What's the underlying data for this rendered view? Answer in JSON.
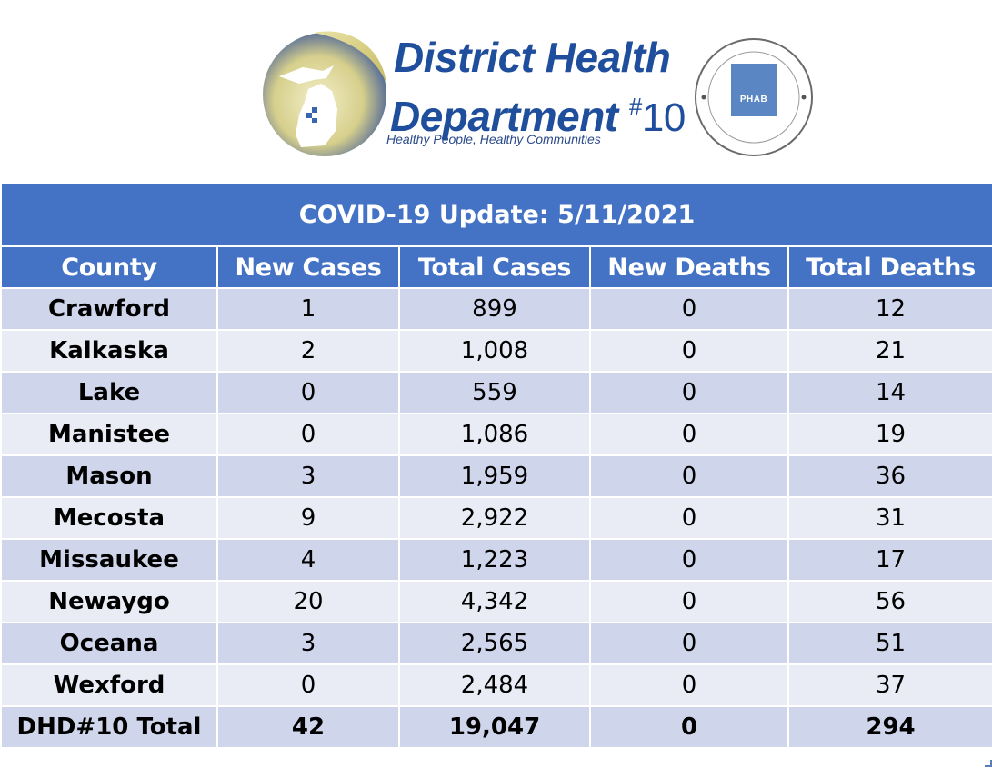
{
  "logo": {
    "line1": "District Health",
    "line2": "Department",
    "number_hash": "#",
    "number": "10",
    "tagline": "Healthy People, Healthy Communities",
    "seal_label": "PHAB",
    "brand_color": "#1f4e9c",
    "icons": [
      "michigan-map-icon",
      "accreditation-seal-icon"
    ]
  },
  "table": {
    "title": "COVID-19 Update: 5/11/2021",
    "header_color": "#4472c4",
    "columns": [
      "County",
      "New Cases",
      "Total Cases",
      "New Deaths",
      "Total Deaths"
    ],
    "rows": [
      [
        "Crawford",
        "1",
        "899",
        "0",
        "12"
      ],
      [
        "Kalkaska",
        "2",
        "1,008",
        "0",
        "21"
      ],
      [
        "Lake",
        "0",
        "559",
        "0",
        "14"
      ],
      [
        "Manistee",
        "0",
        "1,086",
        "0",
        "19"
      ],
      [
        "Mason",
        "3",
        "1,959",
        "0",
        "36"
      ],
      [
        "Mecosta",
        "9",
        "2,922",
        "0",
        "31"
      ],
      [
        "Missaukee",
        "4",
        "1,223",
        "0",
        "17"
      ],
      [
        "Newaygo",
        "20",
        "4,342",
        "0",
        "56"
      ],
      [
        "Oceana",
        "3",
        "2,565",
        "0",
        "51"
      ],
      [
        "Wexford",
        "0",
        "2,484",
        "0",
        "37"
      ]
    ],
    "total": [
      "DHD#10 Total",
      "42",
      "19,047",
      "0",
      "294"
    ]
  }
}
